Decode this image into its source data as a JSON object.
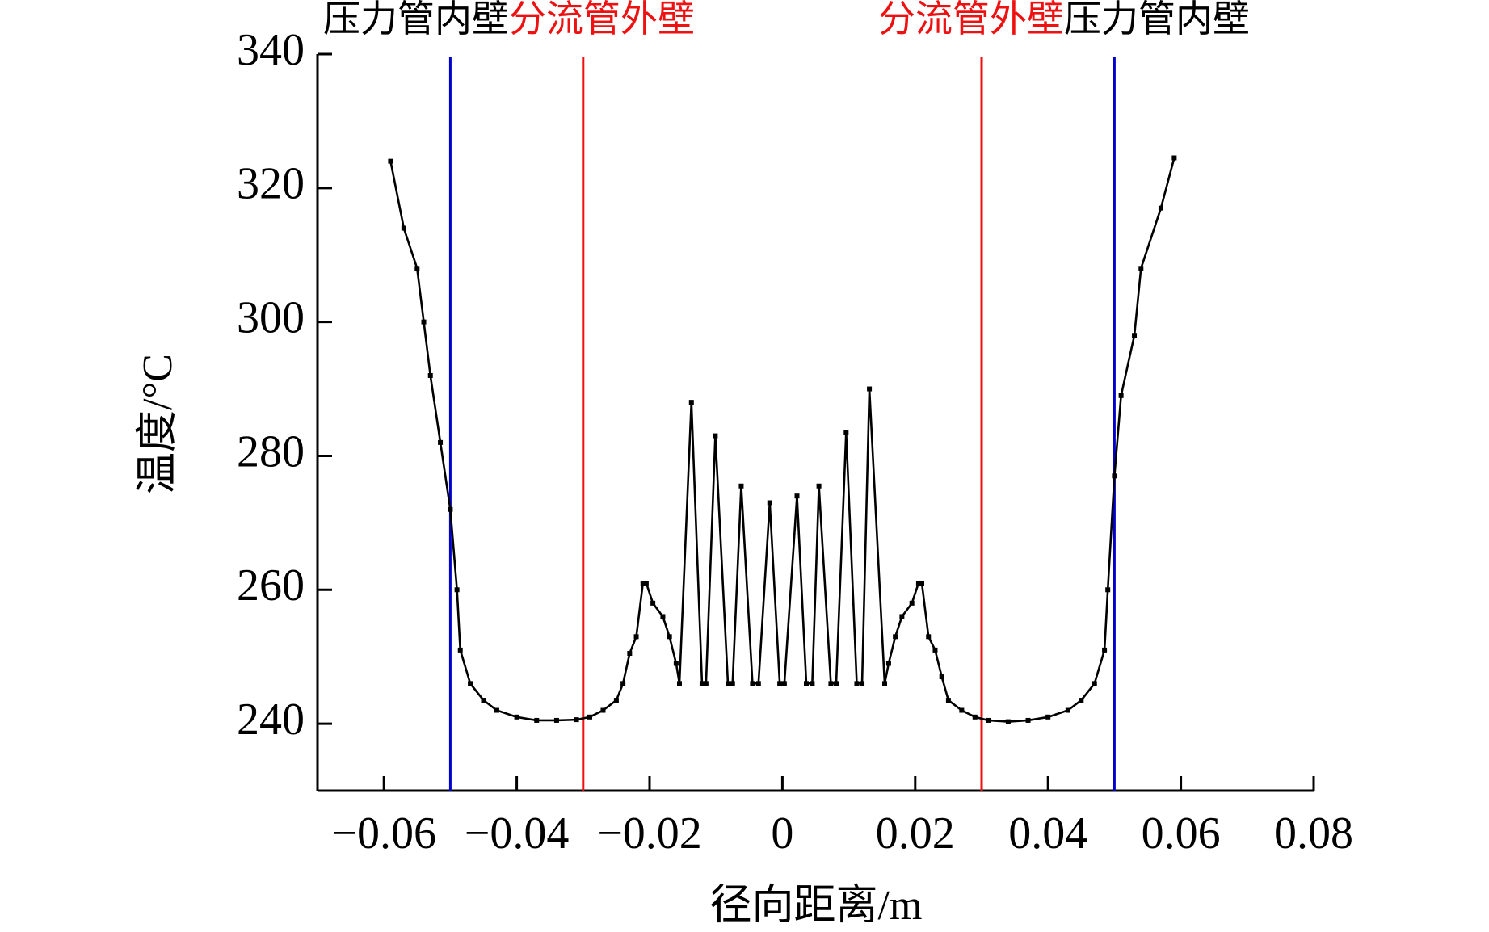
{
  "chart_data": {
    "type": "line",
    "xlabel": "径向距离/m",
    "ylabel": "温度/°C",
    "xlim": [
      -0.07,
      0.08
    ],
    "ylim": [
      230,
      340
    ],
    "xticks": [
      {
        "value": -0.06,
        "label": "−0.06"
      },
      {
        "value": -0.04,
        "label": "−0.04"
      },
      {
        "value": -0.02,
        "label": "−0.02"
      },
      0,
      0.02,
      0.04,
      0.06,
      0.08
    ],
    "yticks": [
      240,
      260,
      280,
      300,
      320,
      340
    ],
    "color": "#000000",
    "x": [
      -0.059,
      -0.057,
      -0.055,
      -0.054,
      -0.053,
      -0.0515,
      -0.05,
      -0.049,
      -0.0485,
      -0.047,
      -0.045,
      -0.043,
      -0.04,
      -0.037,
      -0.034,
      -0.031,
      -0.029,
      -0.027,
      -0.025,
      -0.024,
      -0.023,
      -0.022,
      -0.021,
      -0.0205,
      -0.0195,
      -0.018,
      -0.017,
      -0.016,
      -0.0155,
      -0.0137,
      -0.0121,
      -0.0115,
      -0.0101,
      -0.0082,
      -0.0075,
      -0.0062,
      -0.0045,
      -0.0036,
      -0.0019,
      -0.0004,
      0.0003,
      0.0022,
      0.0036,
      0.0045,
      0.0055,
      0.0073,
      0.0081,
      0.0096,
      0.0112,
      0.012,
      0.0131,
      0.0154,
      0.016,
      0.017,
      0.018,
      0.0195,
      0.0205,
      0.021,
      0.022,
      0.023,
      0.024,
      0.025,
      0.027,
      0.029,
      0.031,
      0.034,
      0.037,
      0.04,
      0.043,
      0.045,
      0.047,
      0.0485,
      0.049,
      0.05,
      0.051,
      0.053,
      0.054,
      0.057,
      0.059
    ],
    "values": [
      324,
      314,
      308,
      300,
      292,
      282,
      272,
      260,
      251,
      246,
      243.5,
      242,
      241,
      240.5,
      240.5,
      240.6,
      241,
      242,
      243.5,
      246,
      250.5,
      253,
      261,
      261,
      258,
      256,
      253,
      249,
      246,
      288,
      246,
      246,
      283,
      246,
      246,
      275.5,
      246,
      246,
      273,
      246,
      246,
      274,
      246,
      246,
      275.5,
      246,
      246,
      283.5,
      246,
      246,
      290,
      246,
      249,
      253,
      256,
      258,
      261,
      261,
      253,
      251,
      247,
      243.5,
      242,
      241,
      240.5,
      240.3,
      240.5,
      241,
      242,
      243.5,
      246,
      251,
      260,
      277,
      289,
      298,
      308,
      317,
      324.5
    ],
    "vlines": [
      {
        "x": -0.05,
        "color": "#0000cc"
      },
      {
        "x": -0.03,
        "color": "#ee1111"
      },
      {
        "x": 0.03,
        "color": "#ee1111"
      },
      {
        "x": 0.05,
        "color": "#0000cc"
      }
    ],
    "annotations": [
      [
        {
          "text": "压力管内壁",
          "color": "#000000"
        },
        {
          "text": "分流管外壁",
          "color": "#ee1111"
        }
      ],
      [
        {
          "text": "分流管外壁",
          "color": "#ee1111"
        },
        {
          "text": "压力管内壁",
          "color": "#000000"
        }
      ]
    ]
  }
}
